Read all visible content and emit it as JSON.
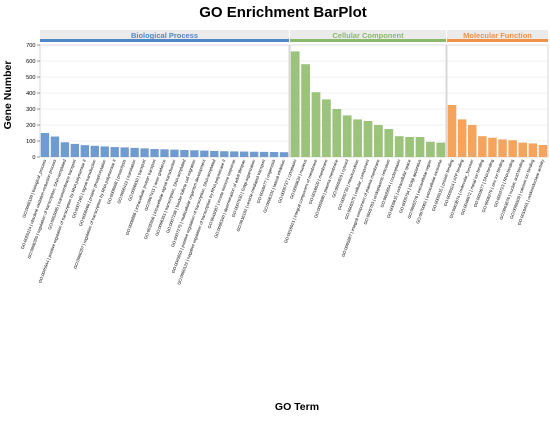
{
  "chart_data": {
    "type": "bar",
    "title": "GO Enrichment BarPlot",
    "xlabel": "GO Term",
    "ylabel": "Gene Number",
    "ylim": [
      0,
      700
    ],
    "yticks": [
      0,
      100,
      200,
      300,
      400,
      500,
      600,
      700
    ],
    "grid": true,
    "panels": [
      {
        "name": "Biological Process",
        "color": "#6f9bd1",
        "header_color": "#4f87c8",
        "categories": [
          "GO:0008150 | biological_process",
          "GO:0055114 | obsolete oxidation-reduction process",
          "GO:0006355 | regulation of transcription, DNA-templated",
          "GO:0055085 | transmembrane transport",
          "GO:0045944 | positive regulation of transcription by RNA polymerase II",
          "GO:0007165 | signal transduction",
          "GO:0006468 | protein phosphorylation",
          "GO:0006357 | regulation of transcription by RNA polymerase II",
          "GO:0006508 | proteolysis",
          "GO:0006412 | translation",
          "GO:0006810 | transport",
          "GO:0006886 | intracellular protein transport",
          "GO:0007411 | axon guidance",
          "GO:0035556 | intracellular signal transduction",
          "GO:0006351 | transcription, DNA-templated",
          "GO:0007298 | border follicle cell migration",
          "GO:0007275 | multicellular organism development",
          "GO:0045893 | positive regulation of transcription, DNA-templated",
          "GO:0000122 | negative regulation of transcription by RNA polymerase II",
          "GO:0045087 | innate immune response",
          "GO:0008340 | determination of adult lifespan",
          "GO:0007030 | Golgi organization",
          "GO:0016192 | vesicle-mediated transport",
          "GO:0048477 | oogenesis",
          "GO:0006331 | lateral inhibition"
        ],
        "values": [
          150,
          128,
          92,
          82,
          74,
          70,
          66,
          62,
          60,
          57,
          54,
          50,
          48,
          46,
          44,
          42,
          40,
          38,
          36,
          35,
          34,
          33,
          32,
          31,
          30
        ]
      },
      {
        "name": "Cellular Component",
        "color": "#9bc37b",
        "header_color": "#8bb86b",
        "categories": [
          "GO:0005737 | cytoplasm",
          "GO:0005634 | nucleus",
          "GO:0016021 | integral component of membrane",
          "GO:0016020 | membrane",
          "GO:0005886 | plasma membrane",
          "GO:0005829 | cytosol",
          "GO:0005739 | mitochondrion",
          "GO:0005575 | cellular_component",
          "GO:0005887 | integral component of plasma membrane",
          "GO:0005783 | endoplasmic reticulum",
          "GO:0005654 | nucleoplasm",
          "GO:0005615 | extracellular space",
          "GO:0005794 | Golgi apparatus",
          "GO:0005576 | extracellular region",
          "GO:0070062 | extracellular exosome"
        ],
        "values": [
          660,
          580,
          405,
          360,
          300,
          260,
          235,
          225,
          200,
          175,
          130,
          125,
          125,
          95,
          90
        ]
      },
      {
        "name": "Molecular Function",
        "color": "#f4a45c",
        "header_color": "#f0914a",
        "categories": [
          "GO:0005515 | protein binding",
          "GO:0005524 | ATP binding",
          "GO:0003674 | molecular_function",
          "GO:0046872 | metal ion binding",
          "GO:0003677 | DNA binding",
          "GO:0008270 | zinc ion binding",
          "GO:0003723 | RNA binding",
          "GO:0003676 | nucleic acid binding",
          "GO:0005509 | calcium ion binding",
          "GO:0016491 | oxidoreductase activity"
        ],
        "values": [
          325,
          235,
          200,
          130,
          120,
          110,
          105,
          90,
          85,
          75
        ]
      }
    ]
  }
}
